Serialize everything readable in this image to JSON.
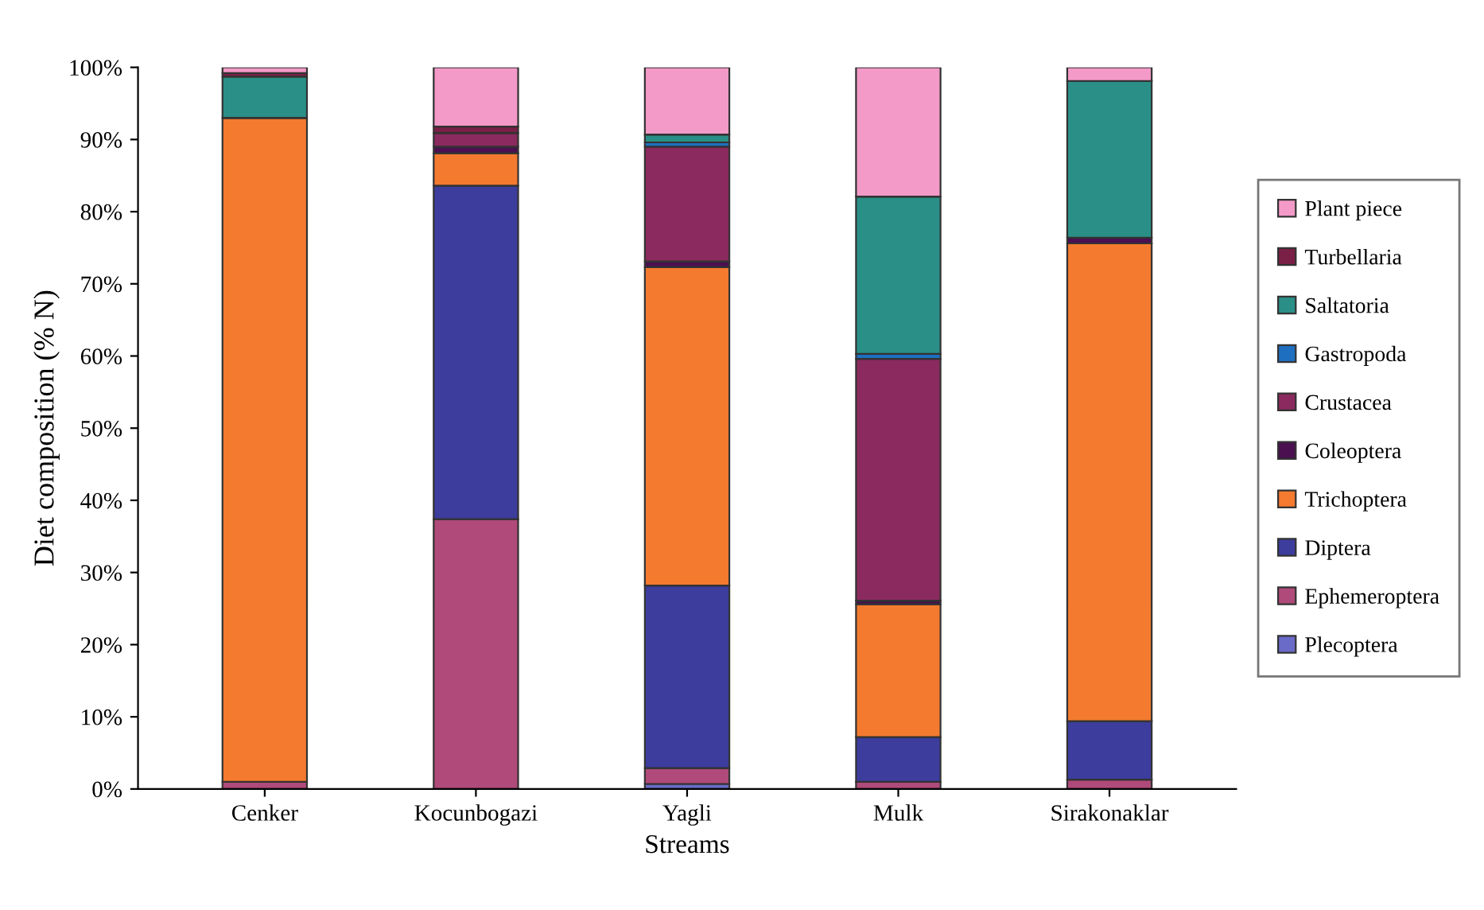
{
  "chart_data": {
    "type": "bar",
    "stacked": true,
    "xlabel": "Streams",
    "ylabel": "Diet composition (% N)",
    "categories": [
      "Cenker",
      "Kocunbogazi",
      "Yagli",
      "Mulk",
      "Sirakonaklar"
    ],
    "series": [
      {
        "name": "Plecoptera",
        "color": "#6a6ac8",
        "values": [
          0,
          0,
          0.7,
          0,
          0
        ]
      },
      {
        "name": "Ephemeroptera",
        "color": "#b04a7a",
        "values": [
          1,
          37.4,
          2.2,
          1.0,
          1.3
        ]
      },
      {
        "name": "Diptera",
        "color": "#3d3d9e",
        "values": [
          0,
          46.2,
          25.3,
          6.2,
          8.1
        ]
      },
      {
        "name": "Trichoptera",
        "color": "#f47a30",
        "values": [
          92,
          4.5,
          44.1,
          18.4,
          66.2
        ]
      },
      {
        "name": "Coleoptera",
        "color": "#4a1050",
        "values": [
          0,
          0.9,
          0.8,
          0.5,
          0.8
        ]
      },
      {
        "name": "Crustacea",
        "color": "#8b2a5e",
        "values": [
          0,
          1.9,
          15.9,
          33.5,
          0
        ]
      },
      {
        "name": "Gastropoda",
        "color": "#1f6fc0",
        "values": [
          0,
          0,
          0.6,
          0.7,
          0
        ]
      },
      {
        "name": "Saltatoria",
        "color": "#2a8f86",
        "values": [
          5.7,
          0,
          1.1,
          21.8,
          21.7
        ]
      },
      {
        "name": "Turbellaria",
        "color": "#7a1f45",
        "values": [
          0.5,
          0.9,
          0,
          0,
          0
        ]
      },
      {
        "name": "Plant piece",
        "color": "#f49ac8",
        "values": [
          0.8,
          8.2,
          9.3,
          17.9,
          1.9
        ]
      }
    ],
    "ylim": [
      0,
      100
    ],
    "yticks": [
      {
        "value": 0,
        "label": "0%"
      },
      {
        "value": 10,
        "label": "10%"
      },
      {
        "value": 20,
        "label": "20%"
      },
      {
        "value": 30,
        "label": "30%"
      },
      {
        "value": 40,
        "label": "40%"
      },
      {
        "value": 50,
        "label": "50%"
      },
      {
        "value": 60,
        "label": "60%"
      },
      {
        "value": 70,
        "label": "70%"
      },
      {
        "value": 80,
        "label": "80%"
      },
      {
        "value": 90,
        "label": "90%"
      },
      {
        "value": 100,
        "label": "100%"
      }
    ],
    "grid": false,
    "legend": "right"
  }
}
